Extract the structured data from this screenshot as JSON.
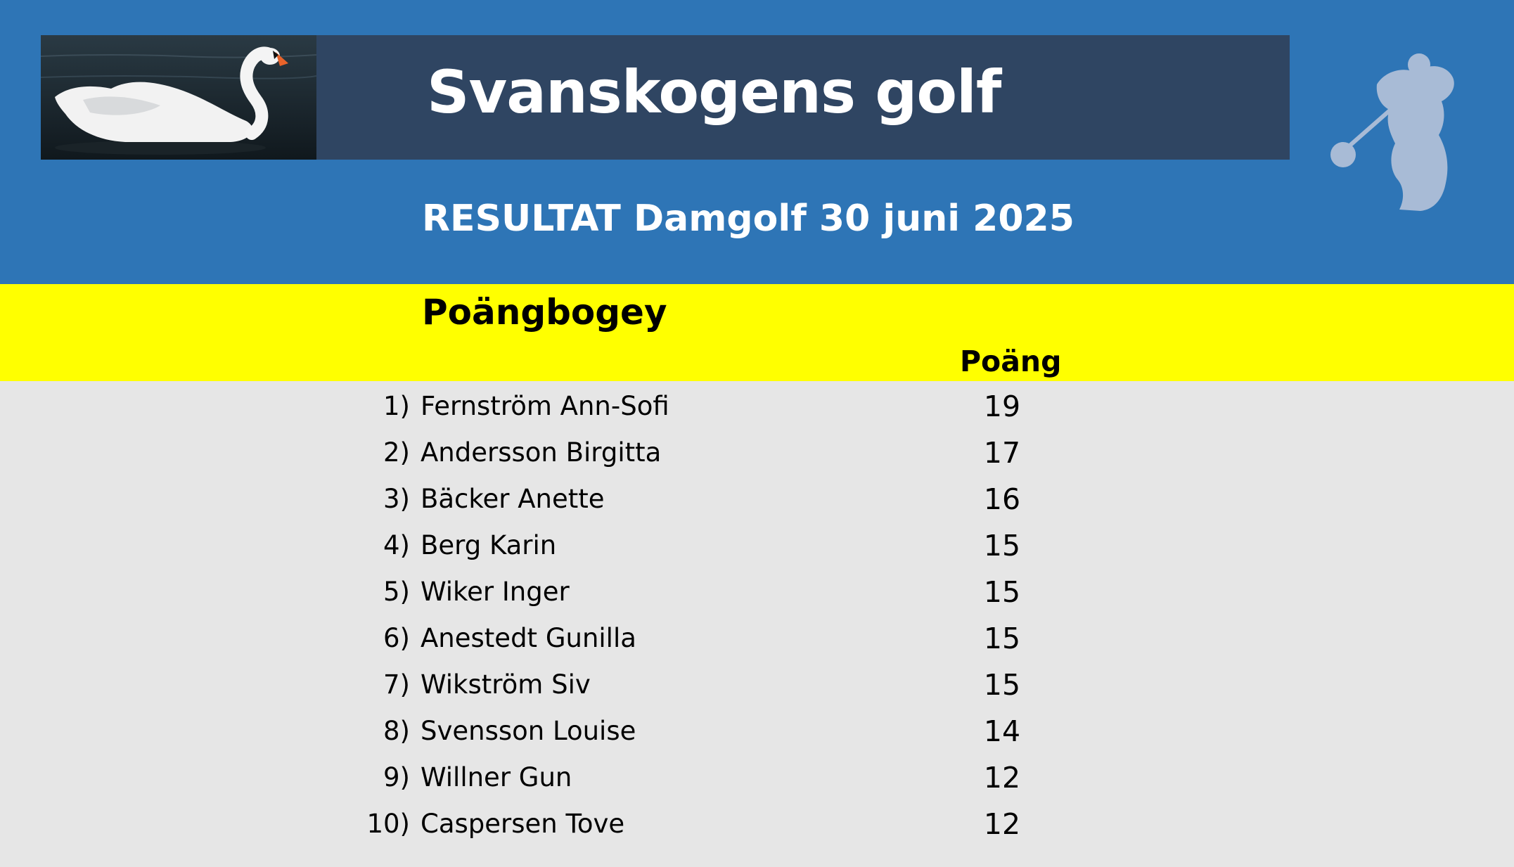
{
  "header": {
    "title": "Svanskogens golf",
    "subtitle": "RESULTAT Damgolf 30 juni 2025"
  },
  "section": {
    "title": "Poängbogey",
    "column_header": "Poäng"
  },
  "results": [
    {
      "rank": "1)",
      "name": "Fernström Ann-Sofi",
      "points": "19"
    },
    {
      "rank": "2)",
      "name": "Andersson Birgitta",
      "points": "17"
    },
    {
      "rank": "3)",
      "name": "Bäcker Anette",
      "points": "16"
    },
    {
      "rank": "4)",
      "name": "Berg Karin",
      "points": "15"
    },
    {
      "rank": "5)",
      "name": "Wiker Inger",
      "points": "15"
    },
    {
      "rank": "6)",
      "name": "Anestedt Gunilla",
      "points": "15"
    },
    {
      "rank": "7)",
      "name": "Wikström Siv",
      "points": "15"
    },
    {
      "rank": "8)",
      "name": "Svensson Louise",
      "points": "14"
    },
    {
      "rank": "9)",
      "name": "Willner Gun",
      "points": "12"
    },
    {
      "rank": "10)",
      "name": "Caspersen Tove",
      "points": "12"
    }
  ],
  "colors": {
    "header_blue": "#2e75b6",
    "title_bar": "#2f4562",
    "highlight_yellow": "#ffff00",
    "table_background": "#e6e6e6"
  },
  "icons": {
    "banner_photo": "swan-icon",
    "logo": "golfer-silhouette-icon"
  }
}
